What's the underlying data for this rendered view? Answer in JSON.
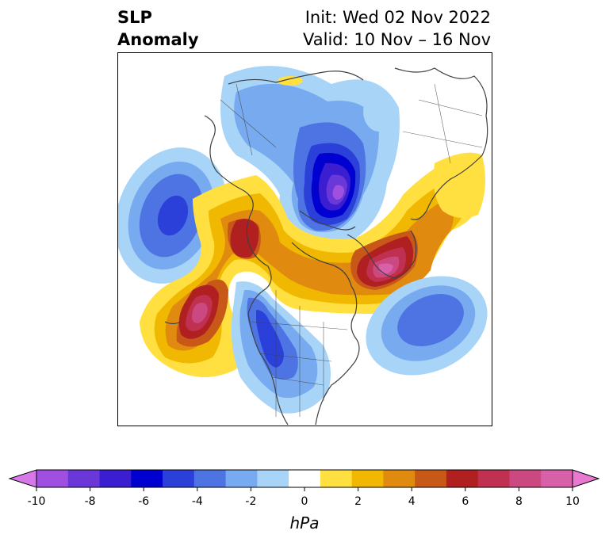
{
  "title": {
    "left_line1": "SLP",
    "left_line2": "Anomaly",
    "right_line1": "Init: Wed 02 Nov 2022",
    "right_line2": "Valid: 10 Nov – 16 Nov"
  },
  "colorbar": {
    "unit": "hPa",
    "ticks": [
      "-10",
      "-8",
      "-6",
      "-4",
      "-2",
      "0",
      "2",
      "4",
      "6",
      "8",
      "10"
    ],
    "colors": [
      "#d878e8",
      "#a050e0",
      "#6a38d8",
      "#3a1ed0",
      "#0000d0",
      "#2a40d8",
      "#4e74e4",
      "#78aaf0",
      "#a8d4f8",
      "#ffffff",
      "#ffe040",
      "#f0b800",
      "#e08a10",
      "#c85818",
      "#b02020",
      "#c03050",
      "#cc4880",
      "#d860a8",
      "#e878d0"
    ],
    "extend": "both"
  },
  "map": {
    "projection": "polar-stereographic north",
    "field": "sea level pressure anomaly"
  }
}
